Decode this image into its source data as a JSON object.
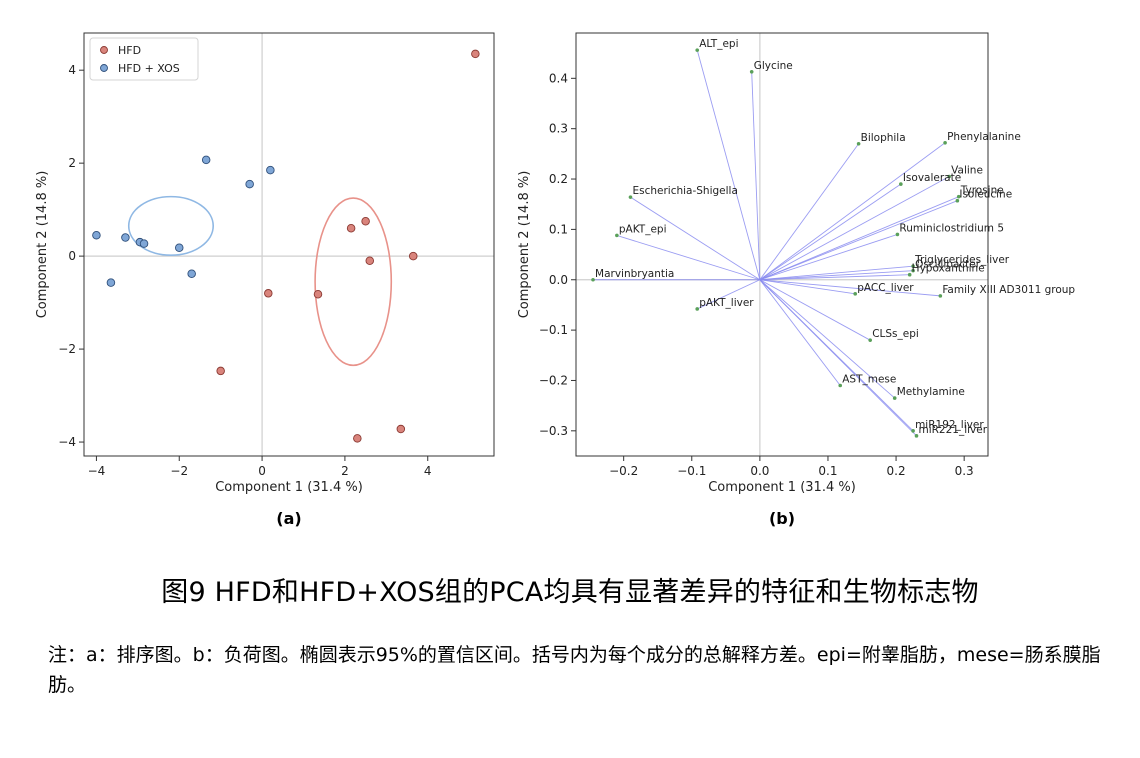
{
  "title": "图9 HFD和HFD+XOS组的PCA均具有显著差异的特征和生物标志物",
  "note": "注：a：排序图。b：负荷图。椭圆表示95%的置信区间。括号内为每个成分的总解释方差。epi=附睾脂肪，mese=肠系膜脂肪。",
  "chart_data": [
    {
      "type": "scatter",
      "panel_label": "(a)",
      "xlabel": "Component 1 (31.4 %)",
      "ylabel": "Component 2 (14.8 %)",
      "xlim": [
        -4.3,
        5.6
      ],
      "ylim": [
        -4.3,
        4.8
      ],
      "xticks": [
        -4,
        -2,
        0,
        2,
        4
      ],
      "yticks": [
        -4,
        -2,
        0,
        2,
        4
      ],
      "reference_lines": "x=0, y=0",
      "legend_placement": "top-left",
      "series": [
        {
          "name": "HFD",
          "color": "#d9847c",
          "edge": "#8b3a33",
          "points": [
            [
              5.15,
              4.35
            ],
            [
              2.15,
              0.6
            ],
            [
              2.5,
              0.75
            ],
            [
              2.6,
              -0.1
            ],
            [
              3.65,
              0.0
            ],
            [
              0.15,
              -0.8
            ],
            [
              1.35,
              -0.82
            ],
            [
              -1.0,
              -2.47
            ],
            [
              2.3,
              -3.92
            ],
            [
              3.35,
              -3.72
            ]
          ]
        },
        {
          "name": "HFD + XOS",
          "color": "#7fa6d6",
          "edge": "#2f4f7a",
          "points": [
            [
              -1.35,
              2.07
            ],
            [
              0.2,
              1.85
            ],
            [
              -0.3,
              1.55
            ],
            [
              -4.0,
              0.45
            ],
            [
              -3.3,
              0.4
            ],
            [
              -2.95,
              0.3
            ],
            [
              -2.85,
              0.27
            ],
            [
              -2.0,
              0.18
            ],
            [
              -1.7,
              -0.38
            ],
            [
              -3.65,
              -0.57
            ]
          ]
        }
      ],
      "ellipses": [
        {
          "series": "HFD",
          "center": [
            2.2,
            -0.55
          ],
          "radii": [
            0.92,
            1.8
          ],
          "color": "#e8928a"
        },
        {
          "series": "HFD + XOS",
          "center": [
            -2.2,
            0.65
          ],
          "radii": [
            1.02,
            0.63
          ],
          "color": "#8fb8e4"
        }
      ]
    },
    {
      "type": "scatter",
      "panel_label": "(b)",
      "xlabel": "Component 1 (31.4 %)",
      "ylabel": "Component 2 (14.8 %)",
      "xlim": [
        -0.27,
        0.335
      ],
      "ylim": [
        -0.35,
        0.49
      ],
      "xticks": [
        -0.2,
        -0.1,
        0.0,
        0.1,
        0.2,
        0.3
      ],
      "yticks": [
        -0.3,
        -0.2,
        -0.1,
        0.0,
        0.1,
        0.2,
        0.3,
        0.4
      ],
      "reference_lines": "x=0, y=0",
      "vector_color": "#8a8cf0",
      "point_color": "#5aa05a",
      "loadings": [
        {
          "label": "ALT_epi",
          "x": -0.092,
          "y": 0.456
        },
        {
          "label": "Glycine",
          "x": -0.012,
          "y": 0.413
        },
        {
          "label": "Bilophila",
          "x": 0.145,
          "y": 0.27
        },
        {
          "label": "Phenylalanine",
          "x": 0.272,
          "y": 0.272
        },
        {
          "label": "Valine",
          "x": 0.278,
          "y": 0.205
        },
        {
          "label": "Isovalerate",
          "x": 0.207,
          "y": 0.19
        },
        {
          "label": "Tyrosine",
          "x": 0.292,
          "y": 0.165
        },
        {
          "label": "Isoleucine",
          "x": 0.29,
          "y": 0.157
        },
        {
          "label": "Escherichia-Shigella",
          "x": -0.19,
          "y": 0.164
        },
        {
          "label": "Ruminiclostridium 5",
          "x": 0.202,
          "y": 0.09
        },
        {
          "label": "pAKT_epi",
          "x": -0.21,
          "y": 0.088
        },
        {
          "label": "Triglycerides_liver",
          "x": 0.225,
          "y": 0.027
        },
        {
          "label": "Oscillibacter",
          "x": 0.225,
          "y": 0.018
        },
        {
          "label": "Hypoxanthine",
          "x": 0.22,
          "y": 0.01
        },
        {
          "label": "Marvinbryantia",
          "x": -0.245,
          "y": 0.0
        },
        {
          "label": "pACC_liver",
          "x": 0.14,
          "y": -0.028
        },
        {
          "label": "Family XIII AD3011 group",
          "x": 0.265,
          "y": -0.032
        },
        {
          "label": "pAKT_liver",
          "x": -0.092,
          "y": -0.058
        },
        {
          "label": "CLSs_epi",
          "x": 0.162,
          "y": -0.12
        },
        {
          "label": "AST_mese",
          "x": 0.118,
          "y": -0.21
        },
        {
          "label": "Methylamine",
          "x": 0.198,
          "y": -0.235
        },
        {
          "label": "miR192_liver",
          "x": 0.225,
          "y": -0.3
        },
        {
          "label": "miR221_liver",
          "x": 0.23,
          "y": -0.31
        }
      ]
    }
  ]
}
